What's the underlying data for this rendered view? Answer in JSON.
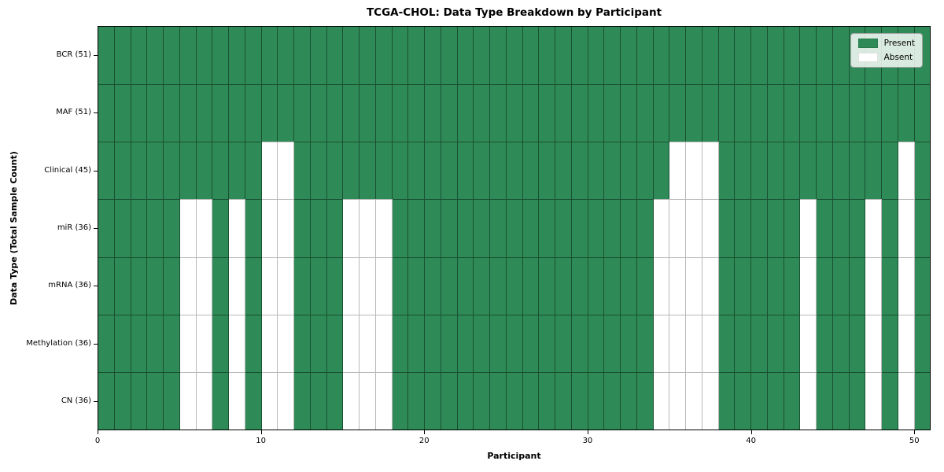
{
  "figure": {
    "title": "TCGA-CHOL: Data Type Breakdown by Participant",
    "xlabel": "Participant",
    "ylabel": "Data Type (Total Sample Count)"
  },
  "legend": {
    "items": [
      {
        "label": "Present",
        "color": "#2E8B57"
      },
      {
        "label": "Absent",
        "color": "#FFFFFF"
      }
    ]
  },
  "chart_data": {
    "type": "heatmap",
    "title": "TCGA-CHOL: Data Type Breakdown by Participant",
    "xlabel": "Participant",
    "ylabel": "Data Type (Total Sample Count)",
    "n_participants": 51,
    "x_range": [
      0,
      51
    ],
    "x_ticks": [
      0,
      10,
      20,
      30,
      40,
      50
    ],
    "grid": true,
    "legend_position": "upper right",
    "colors": {
      "present": "#2E8B57",
      "absent": "#FFFFFF",
      "cell_edge_on_green": "rgba(0,0,0,0.42)",
      "cell_edge_on_white": "#b9b9b9"
    },
    "rows": [
      {
        "label": "BCR (51)",
        "data_type": "BCR",
        "total_sample_count": 51,
        "absent_participants": []
      },
      {
        "label": "MAF (51)",
        "data_type": "MAF",
        "total_sample_count": 51,
        "absent_participants": []
      },
      {
        "label": "Clinical (45)",
        "data_type": "Clinical",
        "total_sample_count": 45,
        "absent_participants": [
          10,
          11,
          35,
          36,
          37,
          49
        ]
      },
      {
        "label": "miR (36)",
        "data_type": "miR",
        "total_sample_count": 36,
        "absent_participants": [
          5,
          6,
          8,
          10,
          11,
          15,
          16,
          17,
          34,
          35,
          36,
          37,
          43,
          47,
          49
        ]
      },
      {
        "label": "mRNA (36)",
        "data_type": "mRNA",
        "total_sample_count": 36,
        "absent_participants": [
          5,
          6,
          8,
          10,
          11,
          15,
          16,
          17,
          34,
          35,
          36,
          37,
          43,
          47,
          49
        ]
      },
      {
        "label": "Methylation (36)",
        "data_type": "Methylation",
        "total_sample_count": 36,
        "absent_participants": [
          5,
          6,
          8,
          10,
          11,
          15,
          16,
          17,
          34,
          35,
          36,
          37,
          43,
          47,
          49
        ]
      },
      {
        "label": "CN (36)",
        "data_type": "CN",
        "total_sample_count": 36,
        "absent_participants": [
          5,
          6,
          8,
          10,
          11,
          15,
          16,
          17,
          34,
          35,
          36,
          37,
          43,
          47,
          49
        ]
      }
    ]
  }
}
